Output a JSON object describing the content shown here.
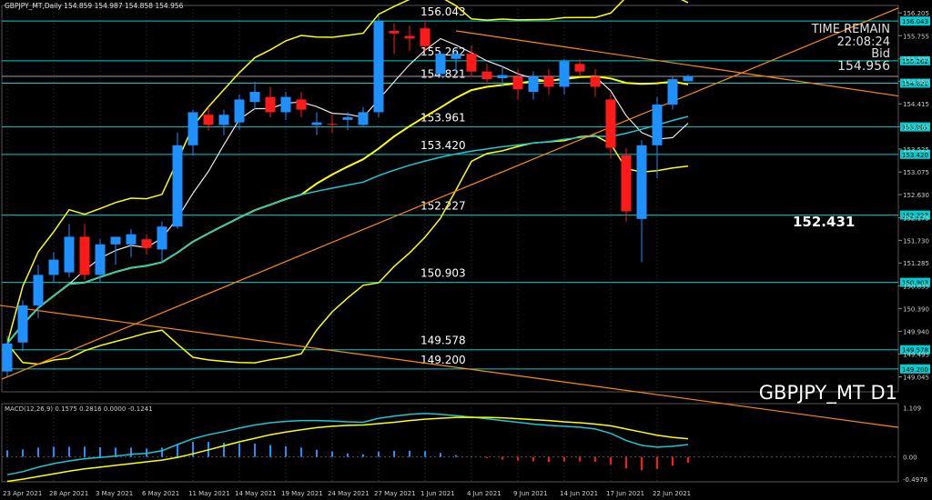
{
  "header": {
    "title": "GBPJPY_MT,Daily  154.859 154.987 154.858 154.956"
  },
  "info": {
    "time_remain_label": "TIME REMAIN",
    "time_remain": "22:08:24",
    "bid_label": "Bid",
    "bid_value": "154.956",
    "symbol_label": "GBPJPY_MT D1",
    "big_level": "152.431"
  },
  "colors": {
    "background": "#000000",
    "bull": "#1e90ff",
    "bear": "#ff1a1a",
    "band": "#ffff00",
    "level_line": "#00ced1",
    "trend": "#ff8c00",
    "ma_white": "#e8e8e8",
    "ma_cyan": "#19c7d8",
    "macd_main": "#19c7d8",
    "macd_signal": "#ffff00"
  },
  "chart_data": {
    "type": "candlestick",
    "symbol": "GBPJPY_MT",
    "timeframe": "Daily",
    "ylim": [
      148.75,
      156.35
    ],
    "y_ticks": [
      "156.205",
      "155.755",
      "155.300",
      "154.860",
      "154.415",
      "153.965",
      "153.525",
      "153.075",
      "152.630",
      "152.175",
      "151.730",
      "151.285",
      "150.835",
      "150.390",
      "149.940",
      "149.495",
      "149.045"
    ],
    "x_tick_labels": [
      "23 Apr 2021",
      "28 Apr 2021",
      "3 May 2021",
      "6 May 2021",
      "11 May 2021",
      "14 May 2021",
      "19 May 2021",
      "24 May 2021",
      "27 May 2021",
      "1 Jun 2021",
      "4 Jun 2021",
      "9 Jun 2021",
      "14 Jun 2021",
      "17 Jun 2021",
      "22 Jun 2021"
    ],
    "x_tick_index": [
      0,
      3,
      6,
      9,
      12,
      15,
      18,
      21,
      24,
      27,
      30,
      33,
      36,
      39,
      42
    ],
    "candles": [
      {
        "o": 149.15,
        "h": 149.85,
        "l": 149.05,
        "c": 149.7
      },
      {
        "o": 149.72,
        "h": 150.55,
        "l": 149.55,
        "c": 150.45
      },
      {
        "o": 150.45,
        "h": 151.25,
        "l": 150.2,
        "c": 151.05
      },
      {
        "o": 151.05,
        "h": 151.5,
        "l": 150.9,
        "c": 151.35
      },
      {
        "o": 151.1,
        "h": 152.05,
        "l": 151.0,
        "c": 151.8
      },
      {
        "o": 151.8,
        "h": 152.05,
        "l": 150.95,
        "c": 151.05
      },
      {
        "o": 151.05,
        "h": 151.75,
        "l": 150.9,
        "c": 151.65
      },
      {
        "o": 151.65,
        "h": 151.8,
        "l": 151.25,
        "c": 151.8
      },
      {
        "o": 151.65,
        "h": 151.95,
        "l": 151.4,
        "c": 151.85
      },
      {
        "o": 151.75,
        "h": 151.85,
        "l": 151.45,
        "c": 151.58
      },
      {
        "o": 151.55,
        "h": 152.1,
        "l": 151.3,
        "c": 152.0
      },
      {
        "o": 152.0,
        "h": 153.85,
        "l": 151.95,
        "c": 153.6
      },
      {
        "o": 153.6,
        "h": 154.3,
        "l": 153.4,
        "c": 154.25
      },
      {
        "o": 154.2,
        "h": 154.35,
        "l": 153.9,
        "c": 154.0
      },
      {
        "o": 154.0,
        "h": 154.3,
        "l": 153.8,
        "c": 154.2
      },
      {
        "o": 154.05,
        "h": 154.6,
        "l": 153.9,
        "c": 154.5
      },
      {
        "o": 154.45,
        "h": 154.85,
        "l": 154.3,
        "c": 154.65
      },
      {
        "o": 154.55,
        "h": 154.75,
        "l": 154.15,
        "c": 154.25
      },
      {
        "o": 154.25,
        "h": 154.65,
        "l": 154.1,
        "c": 154.55
      },
      {
        "o": 154.5,
        "h": 154.65,
        "l": 154.15,
        "c": 154.3
      },
      {
        "o": 154.0,
        "h": 154.25,
        "l": 153.8,
        "c": 154.05
      },
      {
        "o": 154.02,
        "h": 154.2,
        "l": 153.85,
        "c": 154.0
      },
      {
        "o": 154.1,
        "h": 154.25,
        "l": 153.9,
        "c": 154.15
      },
      {
        "o": 154.0,
        "h": 154.35,
        "l": 153.95,
        "c": 154.25
      },
      {
        "o": 154.25,
        "h": 156.15,
        "l": 154.15,
        "c": 156.04
      },
      {
        "o": 155.85,
        "h": 156.0,
        "l": 155.4,
        "c": 155.8
      },
      {
        "o": 155.75,
        "h": 155.95,
        "l": 155.45,
        "c": 155.7
      },
      {
        "o": 155.9,
        "h": 156.05,
        "l": 155.45,
        "c": 155.55
      },
      {
        "o": 155.0,
        "h": 155.45,
        "l": 154.95,
        "c": 155.4
      },
      {
        "o": 155.3,
        "h": 155.5,
        "l": 155.0,
        "c": 155.4
      },
      {
        "o": 155.4,
        "h": 155.55,
        "l": 154.95,
        "c": 155.05
      },
      {
        "o": 155.05,
        "h": 155.2,
        "l": 154.8,
        "c": 154.9
      },
      {
        "o": 154.92,
        "h": 155.15,
        "l": 154.75,
        "c": 154.98
      },
      {
        "o": 154.95,
        "h": 155.1,
        "l": 154.5,
        "c": 154.7
      },
      {
        "o": 154.65,
        "h": 155.05,
        "l": 154.5,
        "c": 154.95
      },
      {
        "o": 154.95,
        "h": 155.1,
        "l": 154.6,
        "c": 154.75
      },
      {
        "o": 154.75,
        "h": 155.3,
        "l": 154.6,
        "c": 155.25
      },
      {
        "o": 155.2,
        "h": 155.3,
        "l": 154.95,
        "c": 155.05
      },
      {
        "o": 154.95,
        "h": 155.1,
        "l": 154.55,
        "c": 154.75
      },
      {
        "o": 154.5,
        "h": 154.6,
        "l": 153.35,
        "c": 153.55
      },
      {
        "o": 153.4,
        "h": 153.55,
        "l": 152.1,
        "c": 152.3
      },
      {
        "o": 152.15,
        "h": 153.7,
        "l": 151.3,
        "c": 153.6
      },
      {
        "o": 153.6,
        "h": 154.55,
        "l": 152.95,
        "c": 154.4
      },
      {
        "o": 154.4,
        "h": 154.95,
        "l": 154.3,
        "c": 154.9
      },
      {
        "o": 154.86,
        "h": 154.99,
        "l": 154.86,
        "c": 154.96
      }
    ],
    "levels": [
      {
        "label": "156.043",
        "value": 156.043
      },
      {
        "label": "155.262",
        "value": 155.262
      },
      {
        "label": "154.821",
        "value": 154.821
      },
      {
        "label": "153.961",
        "value": 153.961
      },
      {
        "label": "153.420",
        "value": 153.42
      },
      {
        "label": "152.227",
        "value": 152.227
      },
      {
        "label": "150.903",
        "value": 150.903
      },
      {
        "label": "149.578",
        "value": 149.578
      },
      {
        "label": "149.200",
        "value": 149.2
      }
    ],
    "macd": {
      "label": "MACD(12,26,9) 0.1575 0.2816 0.0000 -0.1241",
      "ylim": [
        -0.56,
        1.2
      ],
      "y_ticks": [
        "1.109",
        "0.00",
        "-0.4978"
      ],
      "main": [
        -0.4,
        -0.33,
        -0.23,
        -0.15,
        -0.09,
        -0.04,
        -0.01,
        0.02,
        0.06,
        0.08,
        0.14,
        0.28,
        0.41,
        0.5,
        0.57,
        0.65,
        0.72,
        0.77,
        0.8,
        0.82,
        0.82,
        0.81,
        0.79,
        0.78,
        0.87,
        0.92,
        0.96,
        0.98,
        0.96,
        0.93,
        0.9,
        0.86,
        0.82,
        0.78,
        0.74,
        0.71,
        0.69,
        0.67,
        0.63,
        0.53,
        0.37,
        0.26,
        0.22,
        0.24,
        0.28
      ],
      "signal": [
        -0.55,
        -0.5,
        -0.44,
        -0.38,
        -0.32,
        -0.27,
        -0.23,
        -0.19,
        -0.15,
        -0.11,
        -0.07,
        -0.01,
        0.07,
        0.16,
        0.25,
        0.34,
        0.42,
        0.5,
        0.56,
        0.61,
        0.66,
        0.69,
        0.71,
        0.72,
        0.75,
        0.78,
        0.82,
        0.85,
        0.87,
        0.89,
        0.89,
        0.89,
        0.88,
        0.86,
        0.84,
        0.82,
        0.79,
        0.77,
        0.74,
        0.7,
        0.63,
        0.56,
        0.49,
        0.44,
        0.41
      ],
      "histogram": [
        0.15,
        0.17,
        0.21,
        0.23,
        0.23,
        0.23,
        0.22,
        0.21,
        0.21,
        0.19,
        0.21,
        0.29,
        0.34,
        0.34,
        0.32,
        0.31,
        0.3,
        0.27,
        0.24,
        0.21,
        0.16,
        0.12,
        0.08,
        0.06,
        0.12,
        0.14,
        0.14,
        0.13,
        0.09,
        0.04,
        0.01,
        -0.03,
        -0.06,
        -0.08,
        -0.1,
        -0.11,
        -0.1,
        -0.1,
        -0.11,
        -0.17,
        -0.26,
        -0.3,
        -0.27,
        -0.2,
        -0.13
      ]
    }
  }
}
